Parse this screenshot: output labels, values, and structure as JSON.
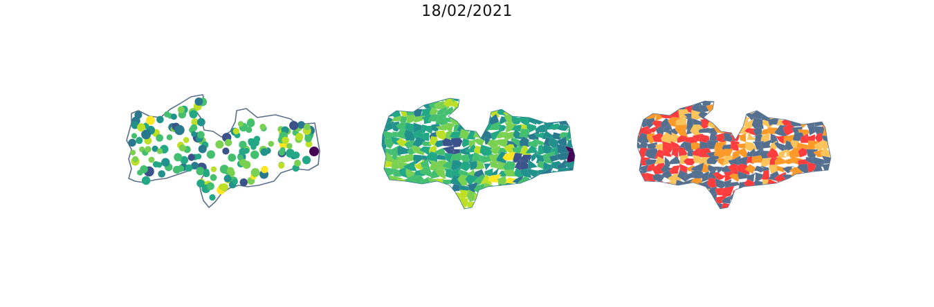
{
  "title": "18/02/2021",
  "maps": [
    {
      "kind": "bubble-map"
    },
    {
      "kind": "choropleth-continuous"
    },
    {
      "kind": "choropleth-categorical"
    }
  ],
  "colors": {
    "outline": "#5a6f8a",
    "viridis": [
      "#440154",
      "#3b528b",
      "#2a788e",
      "#21918c",
      "#22a884",
      "#44bf70",
      "#7ad151",
      "#bddf26",
      "#fde725"
    ],
    "categorical": [
      "#55708f",
      "#fc3d3d",
      "#fbc45a",
      "#fb9a29"
    ]
  }
}
